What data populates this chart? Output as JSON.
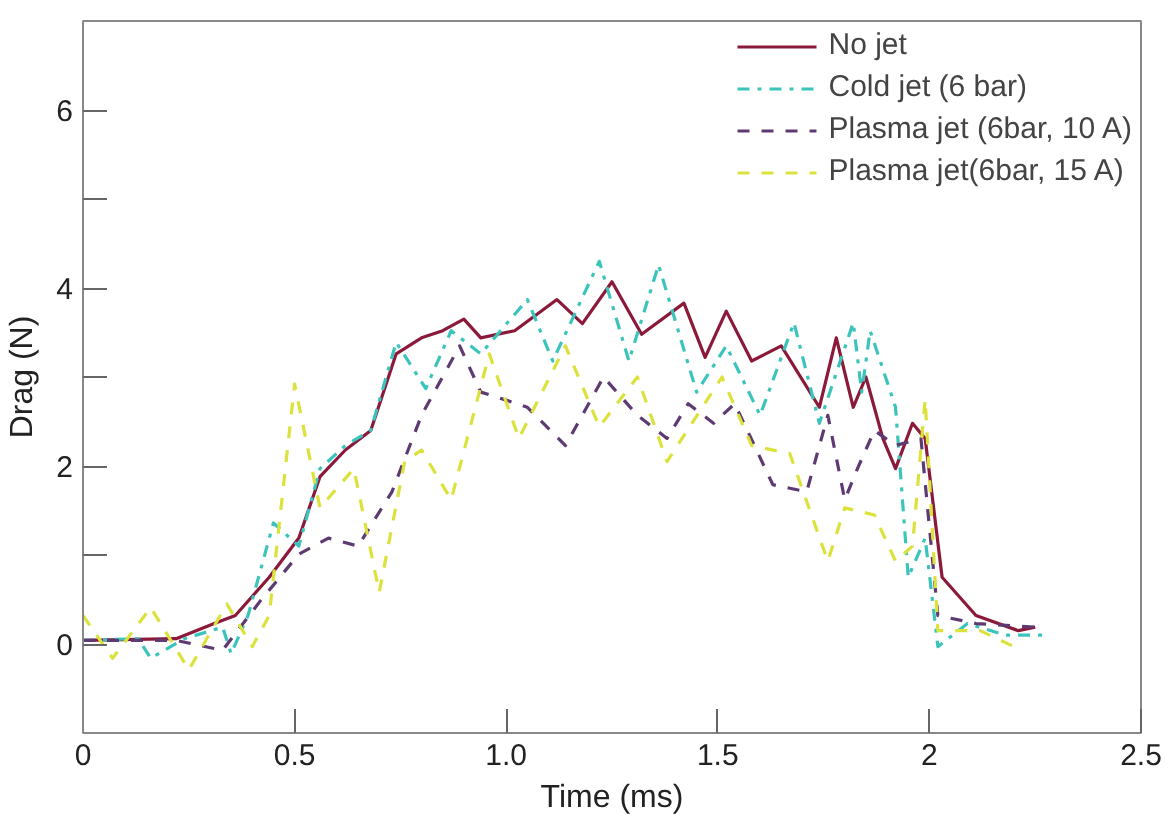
{
  "chart_data": {
    "type": "line",
    "xlabel": "Time (ms)",
    "ylabel": "Drag (N)",
    "xlim": [
      0,
      2.5
    ],
    "ylim": [
      -1,
      7
    ],
    "xticks": [
      0,
      0.5,
      {
        "value": 1.0,
        "label": "1.0"
      },
      {
        "value": 1.5,
        "label": "1.5"
      },
      2,
      2.5
    ],
    "yticks": [
      0,
      {
        "value": 1,
        "label": null
      },
      2,
      {
        "value": 3,
        "label": null
      },
      4,
      {
        "value": 5,
        "label": null
      },
      6
    ],
    "grid": false,
    "legend": "top right",
    "marker": "none",
    "series": [
      {
        "name": "No jet",
        "color": "#8b1a3a",
        "line_style": "solid",
        "x": [
          0,
          0.22,
          0.31,
          0.36,
          0.44,
          0.51,
          0.56,
          0.62,
          0.68,
          0.74,
          0.8,
          0.85,
          0.9,
          0.94,
          1.02,
          1.12,
          1.18,
          1.25,
          1.32,
          1.42,
          1.47,
          1.52,
          1.58,
          1.65,
          1.74,
          1.78,
          1.82,
          1.85,
          1.89,
          1.92,
          1.96,
          1.99,
          2.03,
          2.11,
          2.21,
          2.25
        ],
        "values": [
          0.04,
          0.06,
          0.23,
          0.32,
          0.75,
          1.19,
          1.88,
          2.18,
          2.4,
          3.26,
          3.44,
          3.52,
          3.65,
          3.44,
          3.52,
          3.87,
          3.6,
          4.07,
          3.48,
          3.83,
          3.22,
          3.74,
          3.18,
          3.35,
          2.66,
          3.44,
          2.66,
          3.0,
          2.31,
          1.97,
          2.48,
          2.31,
          0.75,
          0.32,
          0.15,
          0.19
        ]
      },
      {
        "name": "Cold jet (6 bar)",
        "color": "#3cc4bc",
        "line_style": "dashdot",
        "x": [
          0,
          0.13,
          0.16,
          0.24,
          0.33,
          0.35,
          0.39,
          0.45,
          0.51,
          0.56,
          0.62,
          0.68,
          0.74,
          0.81,
          0.87,
          0.94,
          1.05,
          1.11,
          1.22,
          1.29,
          1.36,
          1.45,
          1.52,
          1.6,
          1.68,
          1.74,
          1.82,
          1.84,
          1.86,
          1.92,
          1.95,
          1.99,
          2.02,
          2.09,
          2.18,
          2.27
        ],
        "values": [
          0.04,
          0.06,
          -0.16,
          0.06,
          0.19,
          -0.11,
          0.32,
          1.36,
          1.1,
          1.97,
          2.23,
          2.4,
          3.39,
          2.87,
          3.52,
          3.26,
          3.87,
          3.18,
          4.3,
          3.18,
          4.26,
          2.83,
          3.35,
          2.57,
          3.61,
          2.48,
          3.61,
          2.83,
          3.52,
          2.66,
          0.75,
          1.19,
          -0.03,
          0.23,
          0.1,
          0.1
        ]
      },
      {
        "name": "Plasma jet (6bar, 10 A)",
        "color": "#5e3a72",
        "line_style": "dashed",
        "x": [
          0,
          0.22,
          0.33,
          0.42,
          0.51,
          0.58,
          0.65,
          0.73,
          0.8,
          0.89,
          0.94,
          1.0,
          1.05,
          1.14,
          1.23,
          1.31,
          1.38,
          1.43,
          1.49,
          1.54,
          1.63,
          1.71,
          1.76,
          1.8,
          1.83,
          1.87,
          1.92,
          1.98,
          2.02,
          2.11,
          2.25
        ],
        "values": [
          0.04,
          0.04,
          -0.07,
          0.49,
          1.01,
          1.19,
          1.1,
          1.71,
          2.57,
          3.35,
          2.83,
          2.74,
          2.66,
          2.23,
          3.0,
          2.57,
          2.31,
          2.7,
          2.48,
          2.7,
          1.79,
          1.71,
          2.57,
          1.62,
          1.97,
          2.4,
          2.23,
          2.31,
          0.32,
          0.23,
          0.19
        ]
      },
      {
        "name": "Plasma jet(6bar, 15 A)",
        "color": "#dbe23c",
        "line_style": "dashed",
        "x": [
          0,
          0.07,
          0.16,
          0.25,
          0.34,
          0.4,
          0.44,
          0.5,
          0.56,
          0.64,
          0.7,
          0.76,
          0.8,
          0.87,
          0.96,
          1.03,
          1.14,
          1.22,
          1.31,
          1.38,
          1.51,
          1.58,
          1.67,
          1.76,
          1.8,
          1.87,
          1.92,
          1.96,
          1.99,
          2.02,
          2.12,
          2.2
        ],
        "values": [
          0.32,
          -0.16,
          0.41,
          -0.29,
          0.45,
          -0.03,
          0.32,
          2.92,
          1.53,
          1.97,
          0.58,
          2.05,
          2.18,
          1.62,
          3.26,
          2.31,
          3.35,
          2.44,
          3.0,
          2.05,
          3.0,
          2.23,
          2.14,
          0.93,
          1.53,
          1.45,
          0.93,
          1.1,
          2.75,
          0.15,
          0.15,
          -0.03
        ]
      }
    ]
  }
}
